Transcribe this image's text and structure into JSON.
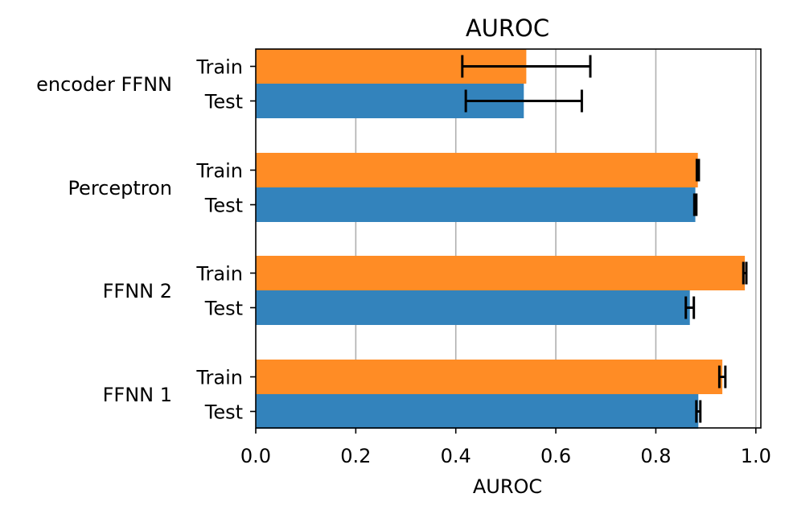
{
  "chart_data": {
    "type": "bar",
    "orientation": "horizontal",
    "title": "AUROC",
    "xlabel": "AUROC",
    "ylabel": "",
    "xlim": [
      0.0,
      1.01
    ],
    "xticks": [
      "0.0",
      "0.2",
      "0.4",
      "0.6",
      "0.8",
      "1.0"
    ],
    "grid": "x",
    "groups": [
      "encoder FFNN",
      "Perceptron",
      "FFNN 2",
      "FFNN 1"
    ],
    "bar_labels": [
      "Train",
      "Test"
    ],
    "colors": {
      "Train": "#ff8c25",
      "Test": "#3383bc",
      "error": "#000000",
      "grid": "#b0b0b0"
    },
    "series": [
      {
        "name": "Train",
        "values": [
          0.541,
          0.884,
          0.978,
          0.933
        ],
        "errors": [
          0.128,
          0.002,
          0.003,
          0.006
        ]
      },
      {
        "name": "Test",
        "values": [
          0.536,
          0.879,
          0.868,
          0.885
        ],
        "errors": [
          0.116,
          0.002,
          0.008,
          0.004
        ]
      }
    ]
  }
}
